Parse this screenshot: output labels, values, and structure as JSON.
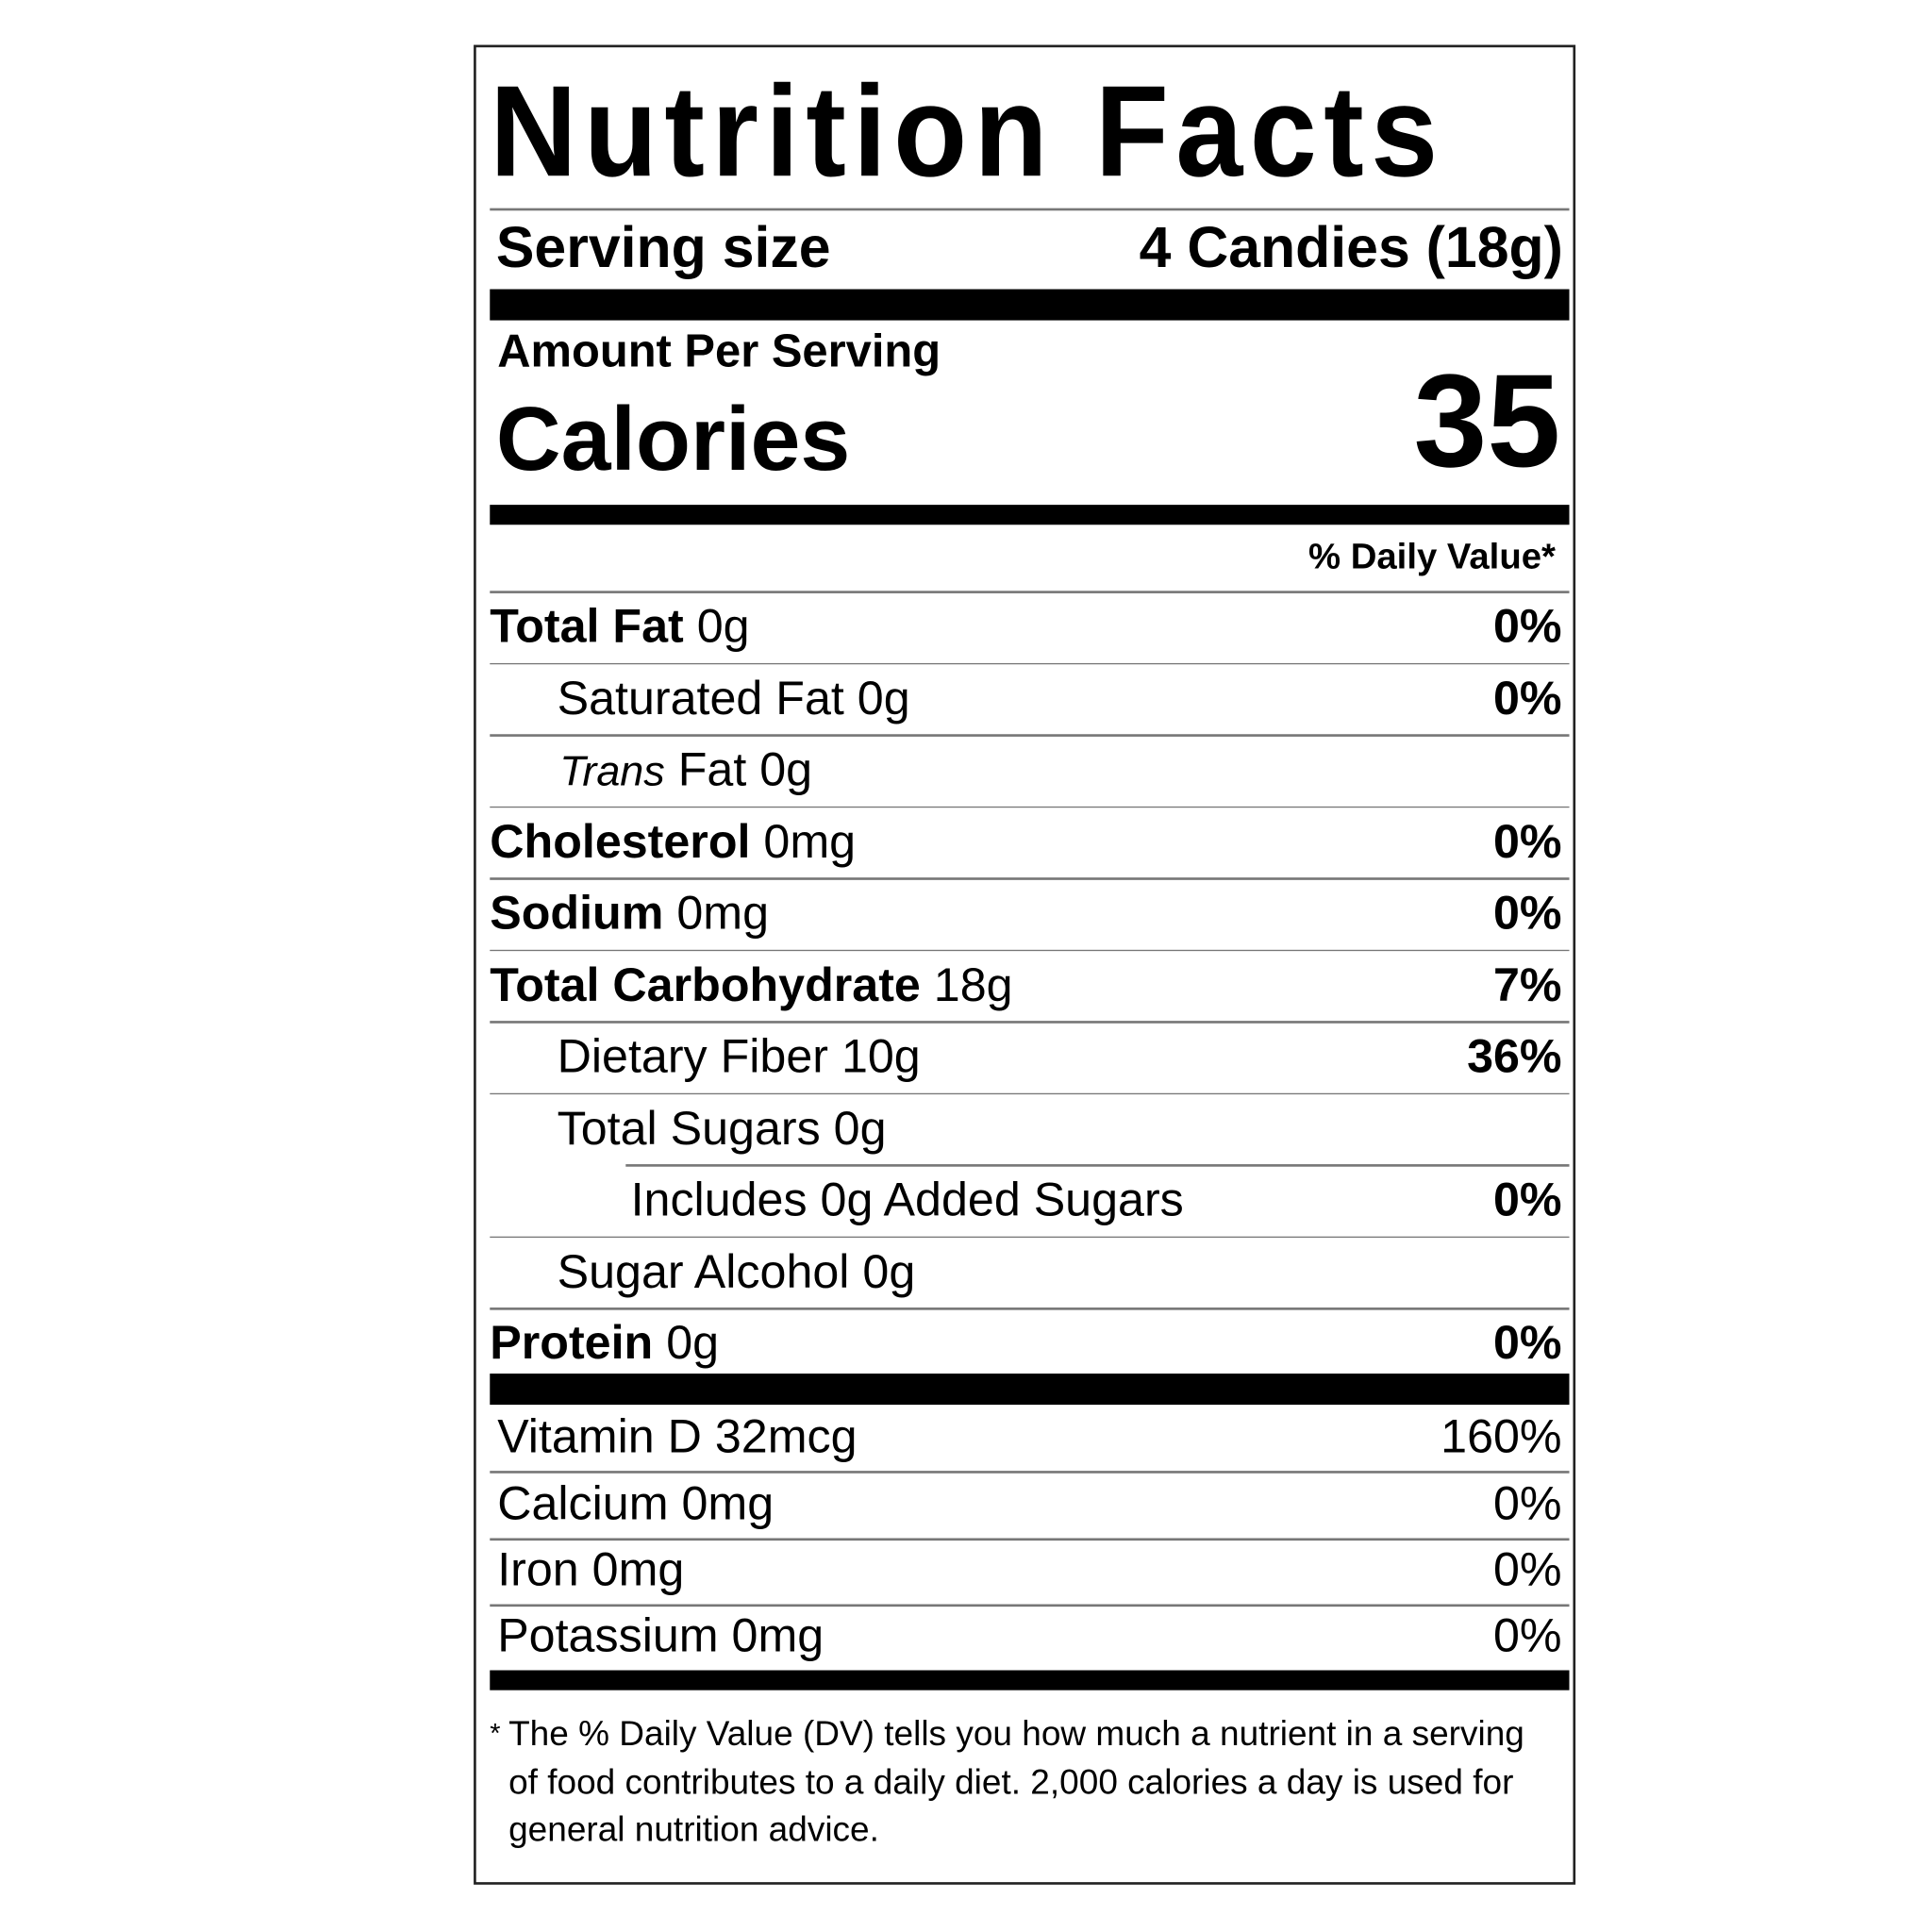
{
  "title": "Nutrition Facts",
  "serving": {
    "label": "Serving size",
    "value": "4 Candies (18g)"
  },
  "amount_per_serving": "Amount Per Serving",
  "calories": {
    "label": "Calories",
    "value": "35"
  },
  "dv_header": "% Daily Value*",
  "nutrients": [
    {
      "name": "Total Fat",
      "amount": "0g",
      "dv": "0%"
    },
    {
      "name": "Saturated Fat",
      "amount": "0g",
      "dv": "0%"
    },
    {
      "name": "Trans",
      "name_rest": "Fat",
      "amount": "0g",
      "dv": ""
    },
    {
      "name": "Cholesterol",
      "amount": "0mg",
      "dv": "0%"
    },
    {
      "name": "Sodium",
      "amount": "0mg",
      "dv": "0%"
    },
    {
      "name": "Total Carbohydrate",
      "amount": "18g",
      "dv": "7%"
    },
    {
      "name": "Dietary Fiber",
      "amount": "10g",
      "dv": "36%"
    },
    {
      "name": "Total Sugars",
      "amount": "0g",
      "dv": ""
    },
    {
      "name": "Includes 0g Added Sugars",
      "amount": "",
      "dv": "0%"
    },
    {
      "name": "Sugar Alcohol",
      "amount": "0g",
      "dv": ""
    },
    {
      "name": "Protein",
      "amount": "0g",
      "dv": "0%"
    }
  ],
  "vitamins": [
    {
      "name": "Vitamin D",
      "amount": "32mcg",
      "dv": "160%"
    },
    {
      "name": "Calcium",
      "amount": "0mg",
      "dv": "0%"
    },
    {
      "name": "Iron",
      "amount": "0mg",
      "dv": "0%"
    },
    {
      "name": "Potassium",
      "amount": "0mg",
      "dv": "0%"
    }
  ],
  "footnote": {
    "mark": "*",
    "text": "The % Daily Value (DV) tells you how much a nutrient in a serving of food contributes to a daily diet. 2,000 calories a day is used for general nutrition advice."
  }
}
